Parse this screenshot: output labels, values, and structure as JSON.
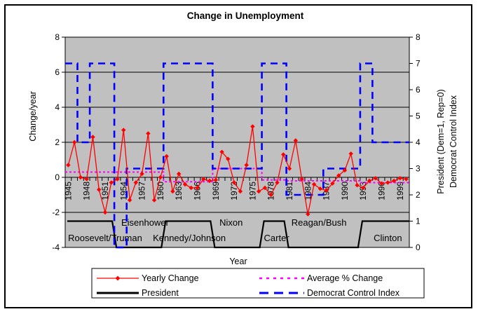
{
  "chart_data": {
    "type": "line",
    "title": "Change in Unemployment",
    "xlabel": "Year",
    "ylabel_left": "Change/year",
    "ylabel_right_line1": "President (Dem=1, Rep=0)",
    "ylabel_right_line2": "Democrat Control Index",
    "colors": {
      "plot_bg": "#c0c0c0",
      "grid": "#000000",
      "frame": "#000000"
    },
    "x": {
      "start": 1945,
      "end": 2000,
      "minor_tick_interval": 1,
      "labeled_ticks": [
        1945,
        1948,
        1951,
        1954,
        1957,
        1960,
        1963,
        1966,
        1969,
        1972,
        1975,
        1978,
        1981,
        1984,
        1987,
        1990,
        1993,
        1996,
        1999
      ]
    },
    "left_axis": {
      "min": -4,
      "max": 8,
      "ticks": [
        8,
        6,
        4,
        2,
        0,
        -2,
        -4
      ]
    },
    "right_axis": {
      "min": 0,
      "max": 8,
      "ticks": [
        8,
        7,
        6,
        5,
        4,
        3,
        2,
        1,
        0
      ]
    },
    "series": {
      "yearly_change": {
        "name": "Yearly Change",
        "color": "#ff0000",
        "axis": "left",
        "marker": "diamond",
        "years_start": 1945,
        "values": [
          0.7,
          2.0,
          0.0,
          -0.1,
          2.3,
          -0.7,
          -2.0,
          -0.3,
          -0.1,
          2.7,
          -1.3,
          -0.3,
          0.2,
          2.5,
          -1.3,
          0.0,
          1.2,
          -0.8,
          0.2,
          -0.4,
          -0.6,
          -0.6,
          -0.1,
          -0.2,
          -0.15,
          1.45,
          1.05,
          -0.3,
          -0.8,
          0.7,
          2.9,
          -0.8,
          -0.6,
          -1.0,
          -0.3,
          1.3,
          0.5,
          2.1,
          -0.1,
          -2.1,
          -0.4,
          -0.65,
          -0.75,
          -0.35,
          0.1,
          0.4,
          1.35,
          -0.45,
          -0.6,
          -0.2,
          -0.05,
          -0.35,
          -0.3,
          -0.2,
          -0.05,
          -0.1
        ]
      },
      "average_pct_change": {
        "name": "Average % Change",
        "color": "#ff00ff",
        "axis": "left",
        "line_style": "dotted",
        "segments": [
          {
            "from": 1945,
            "to": 1952,
            "value": 0.3
          },
          {
            "from": 1953,
            "to": 1960,
            "value": 0.3
          },
          {
            "from": 1961,
            "to": 1968,
            "value": -0.25
          },
          {
            "from": 1969,
            "to": 1976,
            "value": 0.5
          },
          {
            "from": 1977,
            "to": 1980,
            "value": -0.15
          },
          {
            "from": 1981,
            "to": 1992,
            "value": -0.2
          },
          {
            "from": 1993,
            "to": 2000,
            "value": -0.3
          }
        ]
      },
      "president": {
        "name": "President",
        "color": "#000000",
        "axis": "right",
        "line_style": "solid",
        "eras": [
          {
            "label": "Roosevelt/Truman",
            "from": 1945,
            "to": 1952,
            "value": 1,
            "label_year": 1951.0,
            "label_row": "lower"
          },
          {
            "label": "Eisenhower",
            "from": 1953,
            "to": 1960,
            "value": 0,
            "label_year": 1957.5,
            "label_row": "upper"
          },
          {
            "label": "Kennedy/Johnson",
            "from": 1961,
            "to": 1968,
            "value": 1,
            "label_year": 1964.7,
            "label_row": "lower"
          },
          {
            "label": "Nixon",
            "from": 1969,
            "to": 1976,
            "value": 0,
            "label_year": 1971.5,
            "label_row": "upper"
          },
          {
            "label": "Carter",
            "from": 1977,
            "to": 1980,
            "value": 1,
            "label_year": 1978.9,
            "label_row": "lower"
          },
          {
            "label": "Reagan/Bush",
            "from": 1981,
            "to": 1992,
            "value": 0,
            "label_year": 1985.8,
            "label_row": "upper"
          },
          {
            "label": "Clinton",
            "from": 1993,
            "to": 2000,
            "value": 1,
            "label_year": 1997.0,
            "label_row": "lower"
          }
        ]
      },
      "democrat_control_index": {
        "name": "Democrat Control Index",
        "color": "#0000ff",
        "axis": "right",
        "line_style": "dashed",
        "segments": [
          {
            "from": 1945,
            "to": 1946,
            "value": 7
          },
          {
            "from": 1947,
            "to": 1948,
            "value": 4
          },
          {
            "from": 1949,
            "to": 1952,
            "value": 7
          },
          {
            "from": 1953,
            "to": 1954,
            "value": 0
          },
          {
            "from": 1955,
            "to": 1960,
            "value": 3
          },
          {
            "from": 1961,
            "to": 1968,
            "value": 7
          },
          {
            "from": 1969,
            "to": 1976,
            "value": 3
          },
          {
            "from": 1977,
            "to": 1980,
            "value": 7
          },
          {
            "from": 1981,
            "to": 1986,
            "value": 2
          },
          {
            "from": 1987,
            "to": 1992,
            "value": 3
          },
          {
            "from": 1993,
            "to": 1994,
            "value": 7
          },
          {
            "from": 1995,
            "to": 2000,
            "value": 4
          }
        ]
      }
    },
    "legend_position": "bottom"
  }
}
